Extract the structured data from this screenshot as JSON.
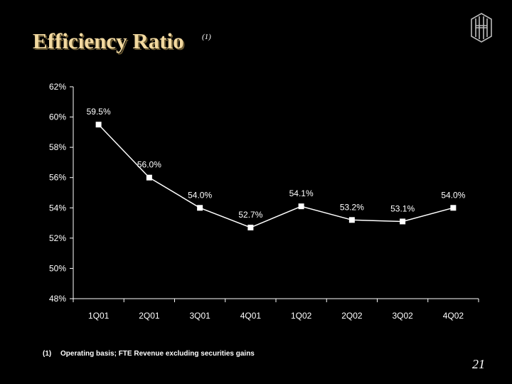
{
  "slide": {
    "title": "Efficiency Ratio",
    "title_note": "(1)",
    "footnote_number": "(1)",
    "footnote_text": "Operating basis; FTE Revenue excluding securities gains",
    "page_number": "21",
    "logo_icon": "huntington-logo-icon"
  },
  "colors": {
    "background": "#000000",
    "title": "#f2d9a0",
    "line": "#ffffff",
    "text": "#ffffff"
  },
  "chart_data": {
    "type": "line",
    "title": "",
    "xlabel": "",
    "ylabel": "",
    "categories": [
      "1Q01",
      "2Q01",
      "3Q01",
      "4Q01",
      "1Q02",
      "2Q02",
      "3Q02",
      "4Q02"
    ],
    "values": [
      59.5,
      56.0,
      54.0,
      52.7,
      54.1,
      53.2,
      53.1,
      54.0
    ],
    "data_labels": [
      "59.5%",
      "56.0%",
      "54.0%",
      "52.7%",
      "54.1%",
      "53.2%",
      "53.1%",
      "54.0%"
    ],
    "ylim": [
      48,
      62
    ],
    "yticks": [
      48,
      50,
      52,
      54,
      56,
      58,
      60,
      62
    ],
    "ytick_labels": [
      "48%",
      "50%",
      "52%",
      "54%",
      "56%",
      "58%",
      "60%",
      "62%"
    ],
    "grid": false,
    "legend": "none",
    "marker": "square"
  }
}
